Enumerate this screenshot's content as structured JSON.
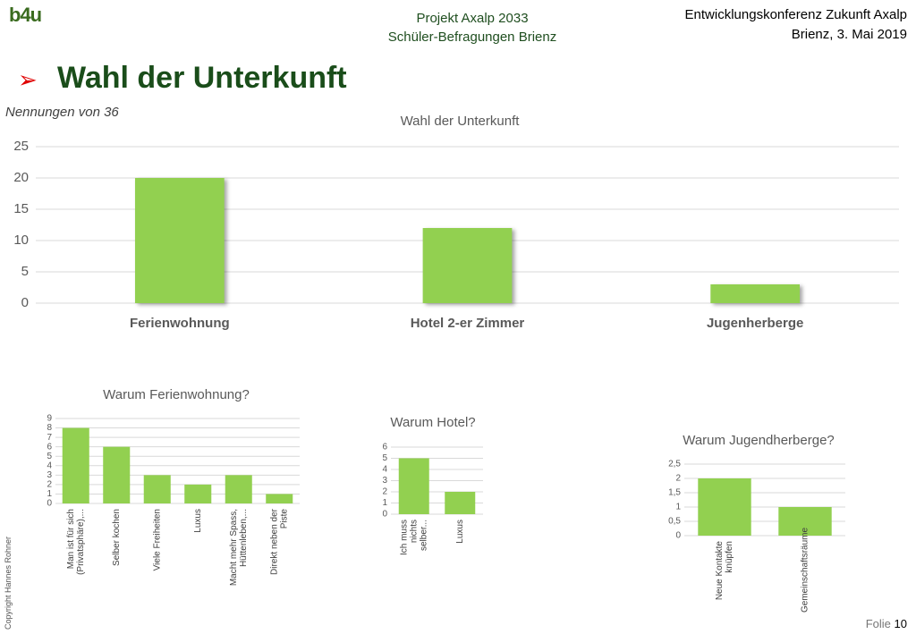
{
  "header": {
    "logo": "b4u",
    "project": "Projekt Axalp 2033",
    "survey": "Schüler-Befragungen Brienz",
    "event": "Entwicklungskonferenz Zukunft Axalp",
    "place_date": "Brienz, 3. Mai 2019"
  },
  "slide_title": "Wahl der Unterkunft",
  "note": "Nennungen von 36",
  "copyright": "Copyright Hannes Rohner",
  "footer": {
    "label": "Folie",
    "number": "10"
  },
  "chart_data": [
    {
      "type": "bar",
      "title": "Wahl der Unterkunft",
      "categories": [
        "Ferienwohnung",
        "Hotel 2-er Zimmer",
        "Jugenherberge"
      ],
      "values": [
        20,
        12,
        3
      ],
      "color": "#92d050",
      "ylim": [
        0,
        25
      ],
      "yticks": [
        0,
        5,
        10,
        15,
        20,
        25
      ],
      "grid": true
    },
    {
      "type": "bar",
      "title": "Warum Ferienwohnung?",
      "categories": [
        "Man ist für sich (Privatsphäre),...",
        "Selber kochen",
        "Viele Freiheiten",
        "Luxus",
        "Macht mehr Spass, Hüttenleben,...",
        "Direkt neben der Piste"
      ],
      "values": [
        8,
        6,
        3,
        2,
        3,
        1
      ],
      "color": "#92d050",
      "ylim": [
        0,
        9
      ],
      "yticks": [
        0,
        1,
        2,
        3,
        4,
        5,
        6,
        7,
        8,
        9
      ],
      "grid": true
    },
    {
      "type": "bar",
      "title": "Warum Hotel?",
      "categories": [
        "Ich muss nichts selber...",
        "Luxus"
      ],
      "values": [
        5,
        2
      ],
      "color": "#92d050",
      "ylim": [
        0,
        6
      ],
      "yticks": [
        0,
        1,
        2,
        3,
        4,
        5,
        6
      ],
      "grid": true
    },
    {
      "type": "bar",
      "title": "Warum Jugendherberge?",
      "categories": [
        "Neue Kontakte knüpfen",
        "Gemeinschaftsräume"
      ],
      "values": [
        2,
        1
      ],
      "color": "#92d050",
      "ylim": [
        0,
        2.5
      ],
      "yticks": [
        0,
        {
          "value": 0.5,
          "label": "0,5"
        },
        1,
        {
          "value": 1.5,
          "label": "1,5"
        },
        2,
        {
          "value": 2.5,
          "label": "2,5"
        }
      ],
      "grid": true
    }
  ]
}
